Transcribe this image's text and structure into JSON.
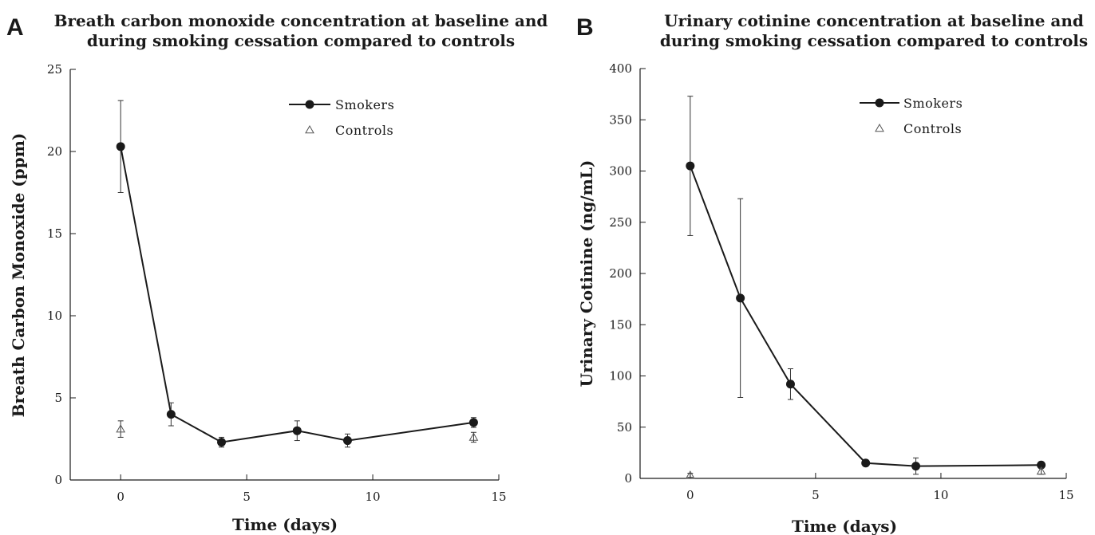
{
  "chart_data": [
    {
      "panel": "A",
      "type": "line",
      "title_lines": [
        "Breath carbon monoxide concentration at baseline and",
        "during smoking cessation compared to controls"
      ],
      "xlabel": "Time (days)",
      "ylabel": "Breath Carbon Monoxide (ppm)",
      "xlim": [
        -2,
        15
      ],
      "ylim": [
        0,
        25
      ],
      "xticks": [
        0,
        5,
        10,
        15
      ],
      "yticks": [
        0,
        5,
        10,
        15,
        20,
        25
      ],
      "grid": false,
      "legend": "top-right",
      "series": [
        {
          "name": "Smokers",
          "marker": "circle",
          "connected": true,
          "x": [
            0,
            2,
            4,
            7,
            9,
            14
          ],
          "y": [
            20.3,
            4.0,
            2.3,
            3.0,
            2.4,
            3.5
          ],
          "err": [
            2.8,
            0.7,
            0.3,
            0.6,
            0.4,
            0.3
          ]
        },
        {
          "name": "Controls",
          "marker": "triangle",
          "connected": false,
          "x": [
            0,
            14
          ],
          "y": [
            3.1,
            2.6
          ],
          "err": [
            0.5,
            0.3
          ]
        }
      ]
    },
    {
      "panel": "B",
      "type": "line",
      "title_lines": [
        "Urinary cotinine concentration at baseline and",
        "during smoking cessation compared to controls"
      ],
      "xlabel": "Time (days)",
      "ylabel": "Urinary Cotinine (ng/mL)",
      "xlim": [
        -2,
        15
      ],
      "ylim": [
        0,
        400
      ],
      "xticks": [
        0,
        5,
        10,
        15
      ],
      "yticks": [
        0,
        50,
        100,
        150,
        200,
        250,
        300,
        350,
        400
      ],
      "grid": false,
      "legend": "top-right",
      "series": [
        {
          "name": "Smokers",
          "marker": "circle",
          "connected": true,
          "x": [
            0,
            2,
            4,
            7,
            9,
            14
          ],
          "y": [
            305,
            176,
            92,
            15,
            12,
            13
          ],
          "err": [
            68,
            97,
            15,
            2,
            8,
            3
          ]
        },
        {
          "name": "Controls",
          "marker": "triangle",
          "connected": false,
          "x": [
            0,
            14
          ],
          "y": [
            3,
            7
          ],
          "err": [
            2,
            3
          ]
        }
      ]
    }
  ]
}
